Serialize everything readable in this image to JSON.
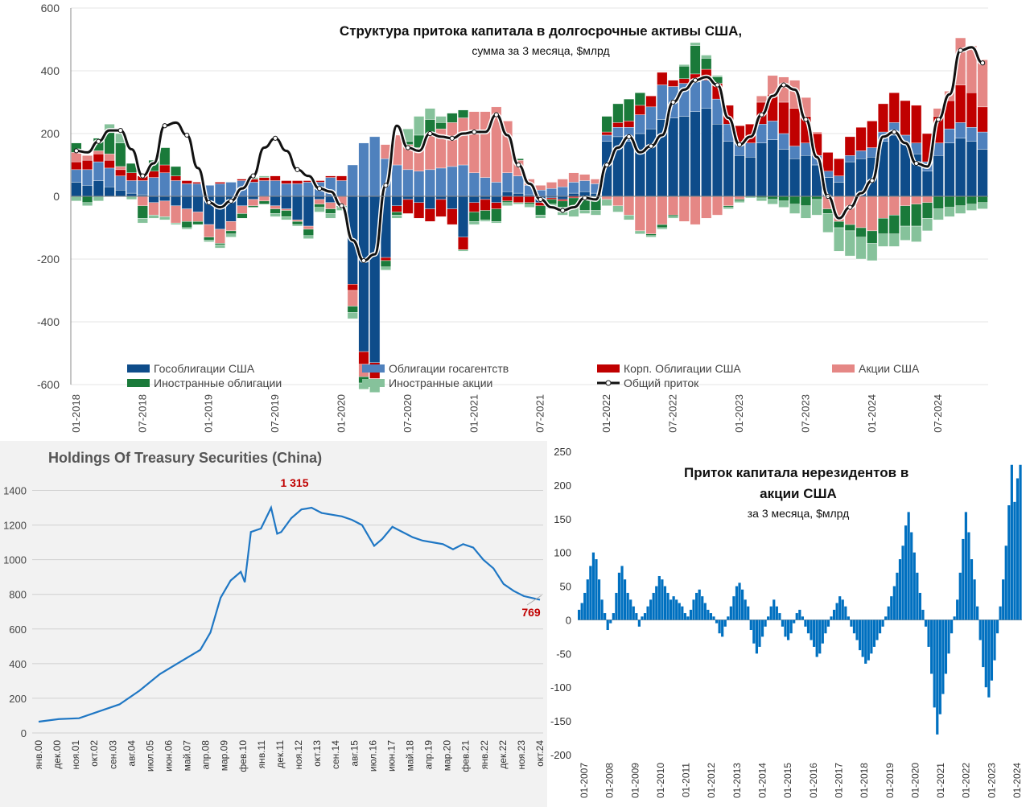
{
  "chart_data": [
    {
      "type": "bar",
      "stacked": true,
      "title": "Структура притока капитала  в долгосрочные активы США,",
      "subtitle": "сумма за 3 месяца, $млрд",
      "xlabel": "",
      "ylabel": "",
      "ylim": [
        -600,
        600
      ],
      "yticks": [
        "600",
        "400",
        "200",
        "0",
        "-200",
        "-400",
        "-600"
      ],
      "yticks_values": [
        600,
        400,
        200,
        0,
        -200,
        -400,
        -600
      ],
      "grid": true,
      "xtick_labels": [
        "01-2018",
        "07-2018",
        "01-2019",
        "07-2019",
        "01-2020",
        "07-2020",
        "01-2021",
        "07-2021",
        "01-2022",
        "07-2022",
        "01-2023",
        "07-2023",
        "01-2024",
        "07-2024"
      ],
      "categories": [
        "01-2018",
        "02-2018",
        "03-2018",
        "04-2018",
        "05-2018",
        "06-2018",
        "07-2018",
        "08-2018",
        "09-2018",
        "10-2018",
        "11-2018",
        "12-2018",
        "01-2019",
        "02-2019",
        "03-2019",
        "04-2019",
        "05-2019",
        "06-2019",
        "07-2019",
        "08-2019",
        "09-2019",
        "10-2019",
        "11-2019",
        "12-2019",
        "01-2020",
        "02-2020",
        "03-2020",
        "04-2020",
        "05-2020",
        "06-2020",
        "07-2020",
        "08-2020",
        "09-2020",
        "10-2020",
        "11-2020",
        "12-2020",
        "01-2021",
        "02-2021",
        "03-2021",
        "04-2021",
        "05-2021",
        "06-2021",
        "07-2021",
        "08-2021",
        "09-2021",
        "10-2021",
        "11-2021",
        "12-2021",
        "01-2022",
        "02-2022",
        "03-2022",
        "04-2022",
        "05-2022",
        "06-2022",
        "07-2022",
        "08-2022",
        "09-2022",
        "10-2022",
        "11-2022",
        "12-2022",
        "01-2023",
        "02-2023",
        "03-2023",
        "04-2023",
        "05-2023",
        "06-2023",
        "07-2023",
        "08-2023",
        "09-2023",
        "10-2023",
        "11-2023",
        "12-2023",
        "01-2024",
        "02-2024",
        "03-2024",
        "04-2024",
        "05-2024",
        "06-2024",
        "07-2024",
        "08-2024",
        "09-2024",
        "10-2024",
        "11-2024"
      ],
      "series": [
        {
          "name": "Гособлигации США",
          "color": "#0e4c8a",
          "values": [
            45,
            35,
            50,
            30,
            20,
            10,
            5,
            -20,
            -15,
            -30,
            -40,
            -50,
            -90,
            -105,
            -80,
            -30,
            -10,
            0,
            -30,
            -40,
            -75,
            -95,
            -10,
            -20,
            0,
            -280,
            -495,
            -530,
            -195,
            -30,
            -10,
            -20,
            -40,
            -10,
            -40,
            -130,
            -20,
            -10,
            -20,
            15,
            10,
            5,
            -20,
            -5,
            -10,
            10,
            15,
            10,
            175,
            190,
            175,
            200,
            215,
            245,
            250,
            255,
            270,
            280,
            230,
            175,
            130,
            125,
            170,
            180,
            150,
            120,
            130,
            100,
            60,
            45,
            110,
            120,
            125,
            175,
            195,
            170,
            135,
            80,
            130,
            170,
            185,
            175,
            150
          ]
        },
        {
          "name": "Облигации госагентств",
          "color": "#4f81bd",
          "values": [
            40,
            50,
            60,
            60,
            45,
            40,
            45,
            60,
            75,
            50,
            40,
            40,
            35,
            40,
            45,
            50,
            45,
            50,
            50,
            40,
            40,
            45,
            45,
            60,
            50,
            100,
            170,
            190,
            120,
            100,
            85,
            80,
            85,
            90,
            95,
            100,
            75,
            60,
            45,
            60,
            55,
            30,
            20,
            25,
            30,
            35,
            35,
            30,
            20,
            30,
            45,
            60,
            70,
            110,
            100,
            105,
            95,
            90,
            80,
            55,
            40,
            45,
            60,
            60,
            50,
            40,
            40,
            30,
            20,
            20,
            20,
            25,
            30,
            30,
            40,
            25,
            35,
            30,
            40,
            45,
            50,
            45,
            55
          ]
        },
        {
          "name": "Корп. Облигации США",
          "color": "#c00000",
          "values": [
            25,
            30,
            25,
            25,
            20,
            25,
            15,
            20,
            25,
            15,
            10,
            5,
            0,
            5,
            0,
            5,
            10,
            10,
            15,
            10,
            10,
            5,
            5,
            5,
            15,
            -20,
            -40,
            -50,
            -10,
            -20,
            -45,
            -50,
            -40,
            -55,
            -50,
            -40,
            -30,
            -35,
            -20,
            -15,
            -20,
            -20,
            -10,
            -5,
            -5,
            -5,
            -5,
            0,
            10,
            15,
            20,
            30,
            35,
            40,
            20,
            15,
            25,
            35,
            50,
            60,
            55,
            60,
            70,
            85,
            100,
            120,
            85,
            70,
            60,
            55,
            60,
            75,
            85,
            90,
            95,
            110,
            120,
            90,
            85,
            90,
            120,
            110,
            80
          ]
        },
        {
          "name": "Акции США",
          "color": "#e58785",
          "values": [
            30,
            15,
            10,
            20,
            10,
            0,
            -30,
            -40,
            -50,
            -55,
            -40,
            -30,
            -40,
            -45,
            -30,
            -25,
            -20,
            -15,
            -10,
            -5,
            -5,
            -10,
            -15,
            -20,
            -30,
            -50,
            -40,
            -10,
            45,
            95,
            80,
            75,
            110,
            125,
            140,
            150,
            195,
            210,
            240,
            165,
            50,
            20,
            15,
            20,
            25,
            30,
            20,
            15,
            -10,
            -30,
            -60,
            -110,
            -120,
            -90,
            -60,
            -80,
            -90,
            -70,
            -60,
            -30,
            -10,
            0,
            20,
            60,
            80,
            90,
            60,
            5,
            -40,
            -80,
            -90,
            -100,
            -110,
            -70,
            -60,
            -30,
            -25,
            -20,
            25,
            30,
            150,
            150,
            150
          ]
        },
        {
          "name": "Иностранные облигации",
          "color": "#1a7a3a",
          "values": [
            30,
            -20,
            40,
            80,
            75,
            30,
            -40,
            35,
            55,
            30,
            -20,
            -10,
            -10,
            -5,
            -10,
            -15,
            -5,
            -10,
            -15,
            -20,
            -10,
            -20,
            -10,
            -15,
            -5,
            -20,
            -20,
            -15,
            -20,
            -10,
            10,
            40,
            50,
            20,
            30,
            25,
            -30,
            -30,
            -40,
            -5,
            5,
            -5,
            -30,
            -15,
            -20,
            -30,
            -40,
            -45,
            50,
            60,
            70,
            40,
            -5,
            -10,
            -5,
            40,
            90,
            35,
            20,
            -5,
            -5,
            0,
            -5,
            -10,
            -15,
            -25,
            -30,
            -10,
            -15,
            -20,
            -20,
            -30,
            -40,
            -50,
            -60,
            -65,
            -70,
            -50,
            -40,
            -35,
            -30,
            -25,
            -20
          ]
        },
        {
          "name": "Иностранные акции",
          "color": "#86c29b",
          "values": [
            -15,
            -10,
            -15,
            15,
            30,
            -10,
            -15,
            -10,
            -10,
            -5,
            -5,
            0,
            -5,
            -10,
            -10,
            0,
            5,
            5,
            -10,
            -10,
            -5,
            -10,
            -15,
            -15,
            -10,
            -20,
            -20,
            -20,
            -10,
            -10,
            40,
            60,
            35,
            20,
            0,
            -5,
            -10,
            -5,
            -5,
            -10,
            -5,
            -10,
            -10,
            -15,
            -25,
            -30,
            -10,
            -15,
            -20,
            -20,
            -15,
            -10,
            -5,
            -5,
            -5,
            5,
            10,
            10,
            5,
            -5,
            -5,
            -5,
            -10,
            -15,
            -20,
            -30,
            -40,
            -50,
            -60,
            -75,
            -80,
            -70,
            -55,
            -40,
            -40,
            -45,
            -50,
            -40,
            -35,
            -30,
            -25,
            -20,
            -20
          ]
        }
      ],
      "total": {
        "name": "Общий приток",
        "color": "#111111",
        "values": [
          145,
          140,
          175,
          210,
          210,
          150,
          65,
          105,
          225,
          235,
          195,
          90,
          -20,
          -35,
          -15,
          25,
          65,
          155,
          185,
          145,
          85,
          65,
          25,
          15,
          -30,
          -140,
          -205,
          -185,
          35,
          225,
          155,
          145,
          200,
          190,
          185,
          200,
          205,
          205,
          260,
          195,
          100,
          40,
          -10,
          -35,
          -45,
          -35,
          -5,
          -10,
          100,
          155,
          190,
          140,
          160,
          195,
          300,
          340,
          370,
          380,
          355,
          250,
          165,
          190,
          260,
          320,
          355,
          340,
          245,
          125,
          0,
          -70,
          -35,
          10,
          50,
          190,
          205,
          170,
          105,
          95,
          245,
          325,
          465,
          475,
          425
        ]
      }
    },
    {
      "type": "line",
      "title": "Holdings Of Treasury Securities (China)",
      "xlabel": "",
      "ylabel": "",
      "ylim": [
        0,
        1500
      ],
      "yticks": [
        "1400",
        "1200",
        "1000",
        "800",
        "600",
        "400",
        "200",
        "0"
      ],
      "yticks_values": [
        1400,
        1200,
        1000,
        800,
        600,
        400,
        200,
        0
      ],
      "grid": true,
      "color": "#1f77c4",
      "xtick_labels": [
        "янв.00",
        "дек.00",
        "ноя.01",
        "окт.02",
        "сен.03",
        "авг.04",
        "июл.05",
        "июн.06",
        "май.07",
        "апр.08",
        "мар.09",
        "фев.10",
        "янв.11",
        "дек.11",
        "ноя.12",
        "окт.13",
        "сен.14",
        "авг.15",
        "июл.16",
        "июн.17",
        "май.18",
        "апр.19",
        "мар.20",
        "фев.21",
        "янв.22",
        "дек.22",
        "ноя.23",
        "окт.24"
      ],
      "annotations": [
        {
          "text": "1 315",
          "color": "#c00000"
        },
        {
          "text": "769",
          "color": "#c00000"
        }
      ],
      "x": [
        "2000.0",
        "2001.0",
        "2002.0",
        "2003.0",
        "2004.0",
        "2005.0",
        "2006.0",
        "2007.0",
        "2008.0",
        "2008.5",
        "2009.0",
        "2009.5",
        "2010.0",
        "2010.2",
        "2010.5",
        "2011.0",
        "2011.5",
        "2011.8",
        "2012.0",
        "2012.5",
        "2013.0",
        "2013.5",
        "2014.0",
        "2014.5",
        "2015.0",
        "2015.5",
        "2016.0",
        "2016.6",
        "2017.0",
        "2017.5",
        "2018.0",
        "2018.5",
        "2019.0",
        "2019.5",
        "2020.0",
        "2020.5",
        "2021.0",
        "2021.5",
        "2022.0",
        "2022.5",
        "2023.0",
        "2023.5",
        "2024.0",
        "2024.8"
      ],
      "values": [
        65,
        80,
        85,
        125,
        165,
        245,
        340,
        410,
        480,
        580,
        780,
        880,
        930,
        870,
        1160,
        1180,
        1300,
        1150,
        1160,
        1240,
        1290,
        1300,
        1270,
        1260,
        1250,
        1230,
        1200,
        1080,
        1120,
        1190,
        1160,
        1130,
        1110,
        1100,
        1090,
        1060,
        1090,
        1070,
        1000,
        950,
        860,
        820,
        790,
        769
      ]
    },
    {
      "type": "bar",
      "title": "Приток капитала  нерезидентов в акции США",
      "subtitle": "за 3 месяца, $млрд",
      "xlabel": "",
      "ylabel": "",
      "ylim": [
        -200,
        250
      ],
      "yticks": [
        "250",
        "200",
        "150",
        "100",
        "50",
        "0",
        "-50",
        "-100",
        "-150",
        "-200"
      ],
      "yticks_values": [
        250,
        200,
        150,
        100,
        50,
        0,
        -50,
        -100,
        -150,
        -200
      ],
      "color": "#0070c0",
      "xtick_labels": [
        "01-2007",
        "01-2008",
        "01-2009",
        "01-2010",
        "01-2011",
        "01-2012",
        "01-2013",
        "01-2014",
        "01-2015",
        "01-2016",
        "01-2017",
        "01-2018",
        "01-2019",
        "01-2020",
        "01-2021",
        "01-2022",
        "01-2023",
        "01-2024"
      ],
      "x_start": "01-2007",
      "values": [
        15,
        25,
        40,
        60,
        80,
        100,
        90,
        60,
        30,
        10,
        -15,
        -5,
        10,
        40,
        70,
        80,
        60,
        40,
        30,
        20,
        10,
        -10,
        5,
        10,
        20,
        30,
        40,
        50,
        65,
        60,
        50,
        40,
        30,
        35,
        30,
        25,
        20,
        10,
        5,
        15,
        30,
        40,
        45,
        35,
        25,
        15,
        10,
        5,
        -5,
        -20,
        -25,
        -10,
        5,
        20,
        35,
        50,
        55,
        45,
        30,
        20,
        -15,
        -35,
        -50,
        -40,
        -25,
        -10,
        5,
        20,
        30,
        20,
        10,
        -10,
        -25,
        -30,
        -20,
        -5,
        10,
        15,
        5,
        -10,
        -20,
        -30,
        -40,
        -55,
        -50,
        -35,
        -20,
        -10,
        5,
        15,
        25,
        35,
        30,
        20,
        5,
        -10,
        -20,
        -30,
        -45,
        -55,
        -65,
        -60,
        -50,
        -40,
        -30,
        -20,
        -10,
        5,
        20,
        35,
        50,
        70,
        90,
        110,
        140,
        160,
        130,
        100,
        70,
        40,
        15,
        -10,
        -40,
        -80,
        -130,
        -170,
        -140,
        -110,
        -80,
        -50,
        -20,
        5,
        30,
        70,
        120,
        160,
        130,
        90,
        60,
        20,
        -30,
        -70,
        -100,
        -115,
        -90,
        -60,
        -20,
        20,
        60,
        110,
        170,
        230,
        175,
        210,
        230
      ]
    }
  ]
}
